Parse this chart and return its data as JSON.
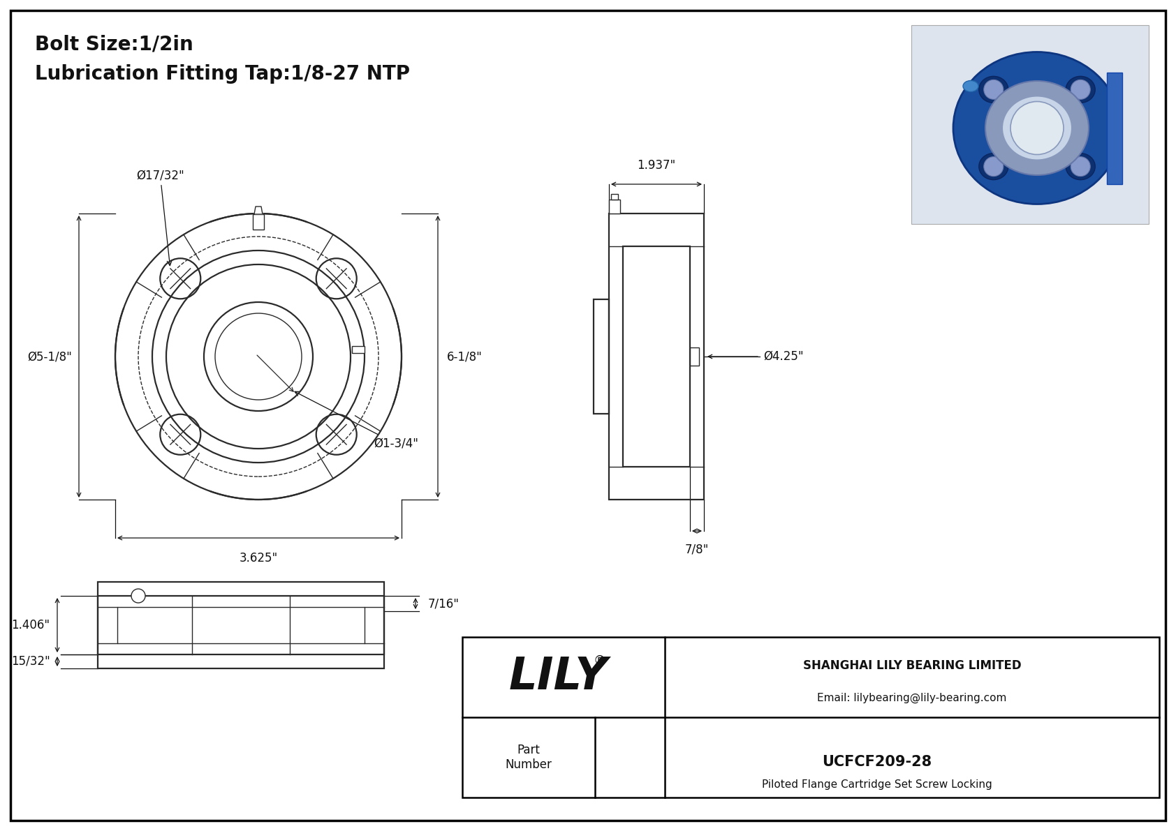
{
  "bg_color": "#ffffff",
  "border_color": "#000000",
  "line_color": "#333333",
  "dim_color": "#222222",
  "title_line1": "Bolt Size:1/2in",
  "title_line2": "Lubrication Fitting Tap:1/8-27 NTP",
  "annotations": {
    "phi_bolt": "Ø17/32\"",
    "phi_flange": "Ø5-1/8\"",
    "dim_height": "6-1/8\"",
    "dim_width": "3.625\"",
    "phi_bore": "Ø1-3/4\"",
    "dim_side_width": "1.937\"",
    "phi_side": "Ø4.25\"",
    "dim_side_depth": "7/8\"",
    "dim_bot_h": "7/16\"",
    "dim_bot_w": "1.406\"",
    "dim_bot_base": "15/32\""
  },
  "company": "SHANGHAI LILY BEARING LIMITED",
  "email": "Email: lilybearing@lily-bearing.com",
  "part_label": "Part\nNumber",
  "part_number": "UCFCF209-28",
  "part_desc": "Piloted Flange Cartridge Set Screw Locking",
  "lily_logo": "LILY"
}
